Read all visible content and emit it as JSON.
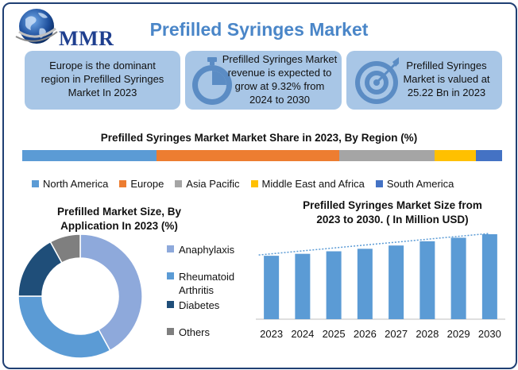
{
  "header": {
    "logo_text": "MMR",
    "title": "Prefilled Syringes Market"
  },
  "cards": [
    {
      "text_lines": [
        "Europe is the dominant",
        "region in Prefilled Syringes",
        "Market In 2023"
      ],
      "icon": "none"
    },
    {
      "text_lines": [
        "Prefilled Syringes Market",
        "revenue is expected to",
        "grow at 9.32% from",
        "2024 to 2030"
      ],
      "icon": "stopwatch-icon"
    },
    {
      "text_lines": [
        "Prefilled Syringes",
        "Market is valued at",
        "25.22 Bn in 2023"
      ],
      "icon": "target-icon"
    }
  ],
  "colors": {
    "north_america": "#5b9bd5",
    "europe": "#ed7d31",
    "asia_pacific": "#a5a5a5",
    "middle_east_africa": "#ffc000",
    "south_america": "#4472c4",
    "card_bg": "#a8c6e6",
    "bar": "#5b9bd5"
  },
  "chart_data": [
    {
      "type": "bar",
      "subtype": "stacked-100",
      "title": "Prefilled Syringes Market Market Share in 2023, By Region (%)",
      "series": [
        {
          "name": "North America",
          "value": 28
        },
        {
          "name": "Europe",
          "value": 38
        },
        {
          "name": "Asia Pacific",
          "value": 20
        },
        {
          "name": "Middle East and Africa",
          "value": 8.5
        },
        {
          "name": "South America",
          "value": 5.5
        }
      ],
      "legend_position": "bottom"
    },
    {
      "type": "pie",
      "subtype": "donut",
      "title_lines": [
        "Prefilled Market Size, By",
        "Application In 2023 (%)"
      ],
      "slices": [
        {
          "name": "Anaphylaxis",
          "value": 42,
          "color": "#8ea9db"
        },
        {
          "name": "Rheumatoid Arthritis",
          "value": 33,
          "color": "#5b9bd5"
        },
        {
          "name": "Diabetes",
          "value": 17,
          "color": "#1f4e79"
        },
        {
          "name": "Others",
          "value": 8,
          "color": "#7f7f7f"
        }
      ],
      "legend_position": "right"
    },
    {
      "type": "bar",
      "title_lines": [
        "Prefilled Syringes Market Size from",
        "2023 to 2030. ( In Million  USD)"
      ],
      "categories": [
        "2023",
        "2024",
        "2025",
        "2026",
        "2027",
        "2028",
        "2029",
        "2030"
      ],
      "values": [
        25.22,
        26.0,
        27.0,
        28.0,
        29.3,
        31.0,
        32.4,
        33.8
      ],
      "ylim": [
        0,
        36
      ],
      "trendline": true,
      "grid": false
    }
  ]
}
